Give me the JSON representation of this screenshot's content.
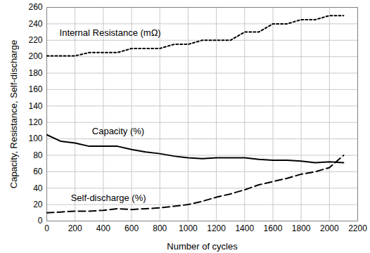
{
  "chart_data": {
    "type": "line",
    "x_label": "Number of cycles",
    "y_label": "Capacity, Resistance, Self-discharge",
    "x": [
      0,
      100,
      200,
      300,
      400,
      500,
      600,
      700,
      800,
      900,
      1000,
      1100,
      1200,
      1300,
      1400,
      1500,
      1600,
      1700,
      1800,
      1900,
      2000,
      2100
    ],
    "series": [
      {
        "name": "Internal Resistance (mΩ)",
        "color": "#000000",
        "line_style": "dotted",
        "values": [
          201,
          201,
          201,
          205,
          205,
          205,
          210,
          210,
          210,
          215,
          215,
          220,
          220,
          220,
          230,
          230,
          240,
          240,
          245,
          245,
          250,
          250
        ]
      },
      {
        "name": "Capacity (%)",
        "color": "#000000",
        "line_style": "solid",
        "values": [
          105,
          97,
          95,
          91,
          91,
          91,
          87,
          84,
          82,
          79,
          77,
          76,
          77,
          77,
          77,
          75,
          74,
          74,
          73,
          71,
          72,
          71
        ]
      },
      {
        "name": "Self-discharge (%)",
        "color": "#000000",
        "line_style": "dashed",
        "values": [
          10,
          11,
          12,
          12,
          13,
          15,
          14,
          15,
          16,
          18,
          20,
          24,
          29,
          33,
          38,
          44,
          48,
          52,
          57,
          60,
          65,
          80
        ]
      }
    ],
    "annotations": [
      {
        "text": "Internal Resistance (mΩ)",
        "x": 90,
        "y": 229
      },
      {
        "text": "Capacity (%)",
        "x": 320,
        "y": 109
      },
      {
        "text": "Self-discharge (%)",
        "x": 170,
        "y": 28
      }
    ],
    "xlim": [
      0,
      2200
    ],
    "xticks": [
      0,
      200,
      400,
      600,
      800,
      1000,
      1200,
      1400,
      1600,
      1800,
      2000,
      2200
    ],
    "ylim": [
      0,
      260
    ],
    "yticks": [
      0,
      20,
      40,
      60,
      80,
      100,
      120,
      140,
      160,
      180,
      200,
      220,
      240,
      260
    ],
    "grid": true
  }
}
